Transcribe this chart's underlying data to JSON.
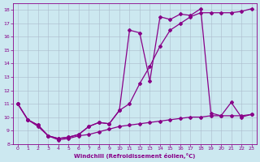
{
  "xlabel": "Windchill (Refroidissement éolien,°C)",
  "background_color": "#cce8f0",
  "grid_color": "#aabbcc",
  "line_color": "#880088",
  "xlim": [
    -0.5,
    23.5
  ],
  "ylim": [
    8,
    18.5
  ],
  "xticks": [
    0,
    1,
    2,
    3,
    4,
    5,
    6,
    7,
    8,
    9,
    10,
    11,
    12,
    13,
    14,
    15,
    16,
    17,
    18,
    19,
    20,
    21,
    22,
    23
  ],
  "yticks": [
    8,
    9,
    10,
    11,
    12,
    13,
    14,
    15,
    16,
    17,
    18
  ],
  "line_upper_x": [
    0,
    1,
    2,
    3,
    4,
    5,
    6,
    7,
    8,
    9,
    10,
    11,
    12,
    13,
    14,
    15,
    16,
    17,
    18,
    19,
    20,
    21,
    22,
    23
  ],
  "line_upper_y": [
    11.0,
    9.8,
    9.4,
    8.6,
    8.4,
    8.5,
    8.7,
    9.3,
    9.6,
    9.5,
    10.5,
    11.0,
    12.5,
    13.8,
    15.3,
    16.5,
    17.0,
    17.5,
    17.8,
    17.8,
    17.8,
    17.8,
    17.9,
    18.1
  ],
  "line_mid_x": [
    0,
    1,
    2,
    3,
    4,
    5,
    6,
    7,
    8,
    9,
    10,
    11,
    12,
    13,
    14,
    15,
    16,
    17,
    18,
    19,
    20,
    21,
    22,
    23
  ],
  "line_mid_y": [
    11.0,
    9.8,
    9.4,
    8.6,
    8.4,
    8.5,
    8.7,
    9.3,
    9.6,
    9.5,
    10.5,
    16.5,
    16.3,
    12.7,
    17.5,
    17.3,
    17.7,
    17.6,
    18.1,
    10.3,
    10.1,
    11.1,
    10.0,
    10.2
  ],
  "line_low_x": [
    0,
    1,
    2,
    3,
    4,
    5,
    6,
    7,
    8,
    9,
    10,
    11,
    12,
    13,
    14,
    15,
    16,
    17,
    18,
    19,
    20,
    21,
    22,
    23
  ],
  "line_low_y": [
    11.0,
    9.8,
    9.3,
    8.6,
    8.3,
    8.4,
    8.6,
    8.7,
    8.9,
    9.1,
    9.3,
    9.4,
    9.5,
    9.6,
    9.7,
    9.8,
    9.9,
    10.0,
    10.0,
    10.1,
    10.1,
    10.1,
    10.1,
    10.2
  ]
}
